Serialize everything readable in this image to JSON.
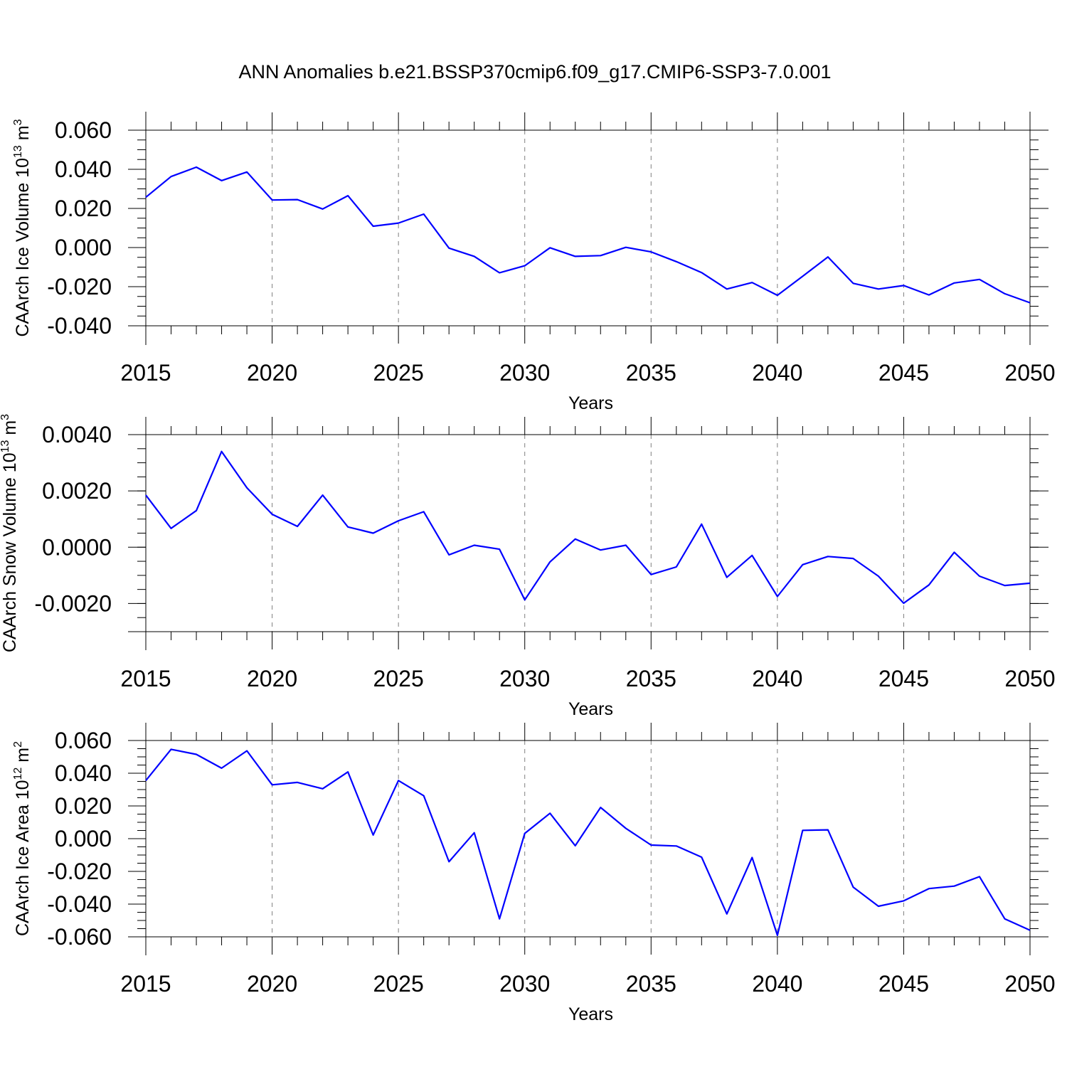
{
  "title": "ANN Anomalies b.e21.BSSP370cmip6.f09_g17.CMIP6-SSP3-7.0.001",
  "colors": {
    "line": "#0000ff",
    "axis": "#000000",
    "grid": "#7f7f7f"
  },
  "chart_data": [
    {
      "type": "line",
      "ylabel": {
        "text": "CAArch Ice Volume 10",
        "exp": "13",
        "unit": " m",
        "unit_exp": "3"
      },
      "xlabel": "Years",
      "xlim": [
        2015,
        2050
      ],
      "ylim": [
        -0.04,
        0.06
      ],
      "grid": "vertical dashed at major x ticks",
      "xticks": [
        2015,
        2020,
        2025,
        2030,
        2035,
        2040,
        2045,
        2050
      ],
      "xtick_labels": [
        "2015",
        "2020",
        "2025",
        "2030",
        "2035",
        "2040",
        "2045",
        "2050"
      ],
      "yticks": [
        -0.04,
        -0.02,
        0.0,
        0.02,
        0.04,
        0.06
      ],
      "ytick_labels": [
        "-0.040",
        "-0.020",
        "0.000",
        "0.020",
        "0.040",
        "0.060"
      ],
      "series": [
        {
          "x": [
            2015,
            2016,
            2017,
            2018,
            2019,
            2020,
            2021,
            2022,
            2023,
            2024,
            2025,
            2026,
            2027,
            2028,
            2029,
            2030,
            2031,
            2032,
            2033,
            2034,
            2035,
            2036,
            2037,
            2038,
            2039,
            2040,
            2041,
            2042,
            2043,
            2044,
            2045,
            2046,
            2047,
            2048,
            2049,
            2050
          ],
          "y": [
            0.0257,
            0.0363,
            0.0411,
            0.0342,
            0.0386,
            0.0243,
            0.0245,
            0.0197,
            0.0265,
            0.0109,
            0.0125,
            0.0171,
            -0.0003,
            -0.0045,
            -0.0129,
            -0.0093,
            -0.0001,
            -0.0045,
            -0.0041,
            0.0001,
            -0.0022,
            -0.0072,
            -0.0128,
            -0.0212,
            -0.0179,
            -0.0244,
            -0.0147,
            -0.0048,
            -0.0183,
            -0.0212,
            -0.0194,
            -0.0242,
            -0.0181,
            -0.0163,
            -0.0236,
            -0.0282
          ]
        }
      ]
    },
    {
      "type": "line",
      "ylabel": {
        "text": "CAArch Snow Volume 10",
        "exp": "13",
        "unit": " m",
        "unit_exp": "3"
      },
      "xlabel": "Years",
      "xlim": [
        2015,
        2050
      ],
      "ylim": [
        -0.003,
        0.004
      ],
      "grid": "vertical dashed at major x ticks",
      "xticks": [
        2015,
        2020,
        2025,
        2030,
        2035,
        2040,
        2045,
        2050
      ],
      "xtick_labels": [
        "2015",
        "2020",
        "2025",
        "2030",
        "2035",
        "2040",
        "2045",
        "2050"
      ],
      "yticks": [
        -0.002,
        0.0,
        0.002,
        0.004
      ],
      "ytick_labels": [
        "-0.0020",
        "0.0000",
        "0.0020",
        "0.0040"
      ],
      "series": [
        {
          "x": [
            2015,
            2016,
            2017,
            2018,
            2019,
            2020,
            2021,
            2022,
            2023,
            2024,
            2025,
            2026,
            2027,
            2028,
            2029,
            2030,
            2031,
            2032,
            2033,
            2034,
            2035,
            2036,
            2037,
            2038,
            2039,
            2040,
            2041,
            2042,
            2043,
            2044,
            2045,
            2046,
            2047,
            2048,
            2049,
            2050
          ],
          "y": [
            0.00185,
            0.00067,
            0.0013,
            0.0034,
            0.00211,
            0.00117,
            0.00074,
            0.00185,
            0.00072,
            0.0005,
            0.00094,
            0.00126,
            -0.00027,
            7e-05,
            -7e-05,
            -0.00187,
            -0.00052,
            0.00029,
            -0.0001,
            7e-05,
            -0.00097,
            -0.0007,
            0.00082,
            -0.00107,
            -0.00029,
            -0.00175,
            -0.00062,
            -0.00033,
            -0.0004,
            -0.00103,
            -0.00199,
            -0.00134,
            -0.00018,
            -0.00103,
            -0.00136,
            -0.00128
          ]
        }
      ]
    },
    {
      "type": "line",
      "ylabel": {
        "text": "CAArch Ice Area 10",
        "exp": "12",
        "unit": " m",
        "unit_exp": "2"
      },
      "xlabel": "Years",
      "xlim": [
        2015,
        2050
      ],
      "ylim": [
        -0.06,
        0.06
      ],
      "grid": "vertical dashed at major x ticks",
      "xticks": [
        2015,
        2020,
        2025,
        2030,
        2035,
        2040,
        2045,
        2050
      ],
      "xtick_labels": [
        "2015",
        "2020",
        "2025",
        "2030",
        "2035",
        "2040",
        "2045",
        "2050"
      ],
      "yticks": [
        -0.06,
        -0.04,
        -0.02,
        0.0,
        0.02,
        0.04,
        0.06
      ],
      "ytick_labels": [
        "-0.060",
        "-0.040",
        "-0.020",
        "0.000",
        "0.020",
        "0.040",
        "0.060"
      ],
      "series": [
        {
          "x": [
            2015,
            2016,
            2017,
            2018,
            2019,
            2020,
            2021,
            2022,
            2023,
            2024,
            2025,
            2026,
            2027,
            2028,
            2029,
            2030,
            2031,
            2032,
            2033,
            2034,
            2035,
            2036,
            2037,
            2038,
            2039,
            2040,
            2041,
            2042,
            2043,
            2044,
            2045,
            2046,
            2047,
            2048,
            2049,
            2050
          ],
          "y": [
            0.0355,
            0.0546,
            0.0515,
            0.0431,
            0.0537,
            0.0329,
            0.0344,
            0.0305,
            0.0408,
            0.0022,
            0.0355,
            0.0262,
            -0.0141,
            0.0036,
            -0.049,
            0.0032,
            0.0155,
            -0.0043,
            0.0191,
            0.0063,
            -0.0039,
            -0.0045,
            -0.0113,
            -0.046,
            -0.0115,
            -0.0591,
            0.0051,
            0.0054,
            -0.0296,
            -0.0413,
            -0.038,
            -0.0305,
            -0.029,
            -0.0232,
            -0.049,
            -0.056
          ]
        }
      ]
    }
  ]
}
